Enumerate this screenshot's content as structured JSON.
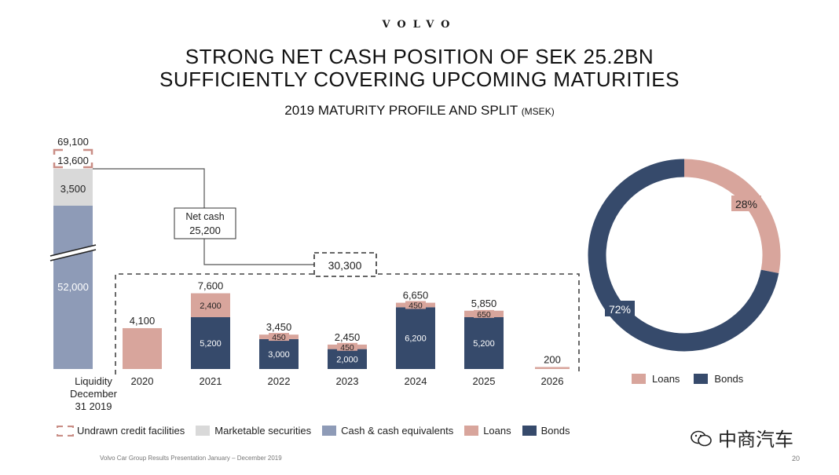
{
  "header": {
    "logo": "VOLVO",
    "title_line1": "STRONG NET CASH POSITION OF SEK 25.2BN",
    "title_line2": "SUFFICIENTLY COVERING UPCOMING MATURITIES",
    "subtitle": "2019 MATURITY PROFILE AND SPLIT",
    "subtitle_unit": "(MSEK)"
  },
  "colors": {
    "loans": "#d8a59c",
    "bonds": "#364a6b",
    "cash": "#8e9bb7",
    "marketable": "#d9d9d9",
    "undrawn": "#c98e86"
  },
  "chart_data": [
    {
      "type": "bar",
      "title": "Liquidity December 31 2019",
      "categories": [
        "Liquidity December 31 2019"
      ],
      "series": [
        {
          "name": "Cash & cash equivalents",
          "values": [
            52000
          ],
          "label": "52,000"
        },
        {
          "name": "Marketable securities",
          "values": [
            3500
          ],
          "label": "3,500"
        },
        {
          "name": "Undrawn credit facilities",
          "values": [
            13600
          ],
          "label": "13,600"
        }
      ],
      "total": 69100,
      "total_label": "69,100",
      "axis_break": true
    },
    {
      "type": "bar",
      "stacked": true,
      "categories": [
        "2020",
        "2021",
        "2022",
        "2023",
        "2024",
        "2025",
        "2026"
      ],
      "series": [
        {
          "name": "Bonds",
          "values": [
            0,
            5200,
            3000,
            2000,
            6200,
            5200,
            0
          ],
          "labels": [
            "",
            "5,200",
            "3,000",
            "2,000",
            "6,200",
            "5,200",
            ""
          ]
        },
        {
          "name": "Loans",
          "values": [
            4100,
            2400,
            450,
            450,
            450,
            650,
            200
          ],
          "labels": [
            "",
            "2,400",
            "450",
            "450",
            "450",
            "650",
            ""
          ]
        }
      ],
      "totals": [
        4100,
        7600,
        3450,
        2450,
        6650,
        5850,
        200
      ],
      "total_labels": [
        "4,100",
        "7,600",
        "3,450",
        "2,450",
        "6,650",
        "5,850",
        "200"
      ],
      "bracket_total": 30300,
      "bracket_label": "30,300"
    },
    {
      "type": "pie",
      "donut": true,
      "labels": [
        "Loans",
        "Bonds"
      ],
      "values": [
        28,
        72
      ],
      "value_labels": [
        "28%",
        "72%"
      ]
    }
  ],
  "net_cash": {
    "label": "Net cash",
    "value": "25,200"
  },
  "legend": [
    {
      "name": "Undrawn credit facilities",
      "key": "undrawn"
    },
    {
      "name": "Marketable securities",
      "key": "marketable"
    },
    {
      "name": "Cash & cash equivalents",
      "key": "cash"
    },
    {
      "name": "Loans",
      "key": "loans"
    },
    {
      "name": "Bonds",
      "key": "bonds"
    }
  ],
  "donut_legend": [
    {
      "name": "Loans",
      "key": "loans"
    },
    {
      "name": "Bonds",
      "key": "bonds"
    }
  ],
  "footer": {
    "text": "Volvo Car Group Results Presentation January – December 2019",
    "page": "20"
  },
  "watermark": {
    "text": "中商汽车"
  }
}
